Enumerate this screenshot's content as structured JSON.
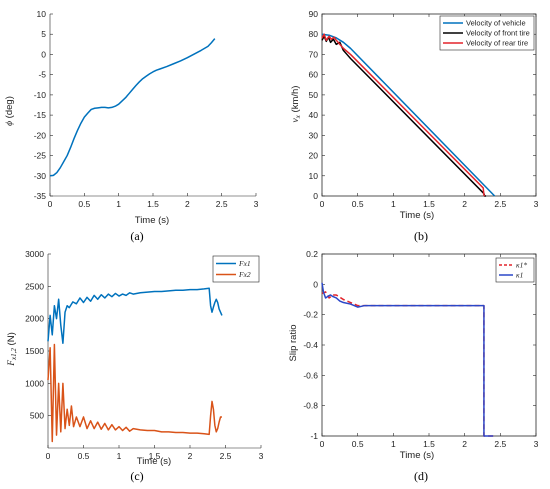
{
  "chart_data": [
    {
      "id": "a",
      "type": "line",
      "caption": "(a)",
      "xlabel": "Time (s)",
      "ylabel": "ϕ (deg)",
      "xlim": [
        0,
        3
      ],
      "ylim": [
        -35,
        10
      ],
      "xticks": [
        0,
        0.5,
        1,
        1.5,
        2,
        2.5,
        3
      ],
      "yticks": [
        -35,
        -30,
        -25,
        -20,
        -15,
        -10,
        -5,
        0,
        5,
        10
      ],
      "series": [
        {
          "color": "#0072BD",
          "x": [
            0.0,
            0.05,
            0.1,
            0.15,
            0.2,
            0.25,
            0.3,
            0.35,
            0.4,
            0.45,
            0.5,
            0.55,
            0.6,
            0.65,
            0.7,
            0.75,
            0.8,
            0.85,
            0.9,
            0.95,
            1.0,
            1.05,
            1.1,
            1.15,
            1.2,
            1.25,
            1.3,
            1.35,
            1.4,
            1.45,
            1.5,
            1.55,
            1.6,
            1.7,
            1.8,
            1.9,
            2.0,
            2.1,
            2.2,
            2.3,
            2.35,
            2.4
          ],
          "y": [
            -30,
            -29.9,
            -29.2,
            -28.0,
            -26.5,
            -25.0,
            -23.0,
            -20.8,
            -18.8,
            -17.0,
            -15.5,
            -14.5,
            -13.6,
            -13.3,
            -13.2,
            -13.1,
            -13.1,
            -13.2,
            -13.1,
            -12.8,
            -12.3,
            -11.5,
            -10.7,
            -9.7,
            -8.7,
            -7.7,
            -6.8,
            -6.0,
            -5.4,
            -4.8,
            -4.3,
            -3.9,
            -3.6,
            -3.0,
            -2.3,
            -1.6,
            -0.8,
            0.1,
            1.0,
            2.0,
            2.9,
            3.9
          ]
        }
      ]
    },
    {
      "id": "b",
      "type": "line",
      "caption": "(b)",
      "xlabel": "Time (s)",
      "ylabel": "vx (km/h)",
      "xlim": [
        0,
        3
      ],
      "ylim": [
        0,
        90
      ],
      "xticks": [
        0,
        0.5,
        1,
        1.5,
        2,
        2.5,
        3
      ],
      "yticks": [
        0,
        10,
        20,
        30,
        40,
        50,
        60,
        70,
        80,
        90
      ],
      "legend_position": "top-right",
      "series": [
        {
          "name": "Velocity of vehicle",
          "color": "#0072BD",
          "x": [
            0,
            0.1,
            0.2,
            0.3,
            0.4,
            2.42
          ],
          "y": [
            80,
            79.5,
            78.2,
            76,
            73,
            0
          ]
        },
        {
          "name": "Velocity of front tire",
          "color": "#000000",
          "x": [
            0,
            0.03,
            0.06,
            0.09,
            0.12,
            0.16,
            0.2,
            0.25,
            0.3,
            0.35,
            0.4,
            2.27,
            2.28,
            2.3
          ],
          "y": [
            77,
            79,
            76.5,
            78.5,
            76,
            77.5,
            75,
            76,
            72,
            70,
            68,
            1.2,
            0,
            0
          ]
        },
        {
          "name": "Velocity of rear tire",
          "color": "#E3242B",
          "x": [
            0,
            0.03,
            0.06,
            0.1,
            0.13,
            0.17,
            0.2,
            0.3,
            0.4,
            2.26,
            2.27,
            2.28
          ],
          "y": [
            78,
            80,
            77,
            79,
            77.5,
            78.5,
            77,
            73,
            70,
            4,
            0.5,
            0
          ]
        }
      ]
    },
    {
      "id": "c",
      "type": "line",
      "caption": "(c)",
      "xlabel": "Time (s)",
      "ylabel": "Fx1,2 (N)",
      "xlim": [
        0,
        3
      ],
      "ylim": [
        0,
        3000
      ],
      "xticks": [
        0,
        0.5,
        1,
        1.5,
        2,
        2.5,
        3
      ],
      "yticks": [
        500,
        1000,
        1500,
        2000,
        2500,
        3000
      ],
      "legend_position": "top-right",
      "series": [
        {
          "name": "Fx1",
          "color": "#0072BD",
          "x": [
            0.0,
            0.03,
            0.06,
            0.09,
            0.12,
            0.15,
            0.18,
            0.21,
            0.24,
            0.27,
            0.3,
            0.35,
            0.4,
            0.45,
            0.5,
            0.55,
            0.6,
            0.65,
            0.7,
            0.75,
            0.8,
            0.85,
            0.9,
            0.95,
            1.0,
            1.05,
            1.1,
            1.15,
            1.2,
            1.3,
            1.4,
            1.5,
            1.6,
            1.7,
            1.8,
            1.9,
            2.0,
            2.1,
            2.2,
            2.27,
            2.29,
            2.31,
            2.33,
            2.35,
            2.37,
            2.39,
            2.41,
            2.43,
            2.45
          ],
          "y": [
            1650,
            2050,
            1750,
            2200,
            2000,
            2300,
            1900,
            1620,
            2100,
            2200,
            2170,
            2260,
            2230,
            2320,
            2250,
            2330,
            2270,
            2360,
            2300,
            2370,
            2320,
            2380,
            2340,
            2390,
            2350,
            2380,
            2360,
            2400,
            2380,
            2400,
            2410,
            2420,
            2420,
            2430,
            2440,
            2440,
            2450,
            2450,
            2460,
            2470,
            2200,
            2100,
            2180,
            2250,
            2300,
            2250,
            2150,
            2100,
            2050
          ]
        },
        {
          "name": "Fx2",
          "color": "#D95319",
          "x": [
            0.0,
            0.03,
            0.06,
            0.09,
            0.12,
            0.15,
            0.18,
            0.21,
            0.24,
            0.27,
            0.3,
            0.33,
            0.36,
            0.4,
            0.45,
            0.5,
            0.55,
            0.6,
            0.65,
            0.7,
            0.75,
            0.8,
            0.85,
            0.9,
            0.95,
            1.0,
            1.05,
            1.1,
            1.15,
            1.2,
            1.3,
            1.4,
            1.5,
            1.6,
            1.7,
            1.8,
            1.9,
            2.0,
            2.1,
            2.2,
            2.27,
            2.29,
            2.31,
            2.33,
            2.35,
            2.37,
            2.39,
            2.41,
            2.43,
            2.45
          ],
          "y": [
            1050,
            1550,
            100,
            1600,
            200,
            1000,
            250,
            1000,
            300,
            600,
            350,
            650,
            330,
            480,
            330,
            480,
            300,
            420,
            300,
            400,
            290,
            380,
            280,
            360,
            280,
            330,
            270,
            320,
            260,
            300,
            280,
            270,
            270,
            250,
            250,
            240,
            240,
            230,
            230,
            220,
            210,
            500,
            720,
            600,
            350,
            250,
            300,
            400,
            480,
            480
          ]
        }
      ]
    },
    {
      "id": "d",
      "type": "line",
      "caption": "(d)",
      "xlabel": "Time (s)",
      "ylabel": "Slip ratio",
      "xlim": [
        0,
        3
      ],
      "ylim": [
        -1,
        0.2
      ],
      "xticks": [
        0,
        0.5,
        1,
        1.5,
        2,
        2.5,
        3
      ],
      "yticks": [
        -1,
        -0.8,
        -0.6,
        -0.4,
        -0.2,
        0,
        0.2
      ],
      "legend_position": "top-right",
      "series": [
        {
          "name": "κ1*",
          "color": "#E3242B",
          "dashed": true,
          "x": [
            0.0,
            0.05,
            0.1,
            0.15,
            0.2,
            0.3,
            0.4,
            0.5,
            0.6,
            0.7,
            0.8,
            0.9,
            1.0,
            1.2,
            1.4,
            1.6,
            1.8,
            2.0,
            2.2,
            2.27,
            2.27,
            2.4
          ],
          "y": [
            -0.06,
            -0.05,
            -0.09,
            -0.07,
            -0.07,
            -0.1,
            -0.12,
            -0.14,
            -0.14,
            -0.14,
            -0.14,
            -0.14,
            -0.14,
            -0.14,
            -0.14,
            -0.14,
            -0.14,
            -0.14,
            -0.14,
            -0.14,
            -1.0,
            -1.0
          ]
        },
        {
          "name": "κ1",
          "color": "#2B47C8",
          "x": [
            0.0,
            0.02,
            0.05,
            0.08,
            0.12,
            0.15,
            0.2,
            0.25,
            0.3,
            0.4,
            0.5,
            0.6,
            0.8,
            1.0,
            1.2,
            1.4,
            1.6,
            1.8,
            2.0,
            2.2,
            2.27,
            2.27,
            2.4
          ],
          "y": [
            0.01,
            -0.05,
            -0.09,
            -0.08,
            -0.07,
            -0.08,
            -0.09,
            -0.11,
            -0.12,
            -0.13,
            -0.15,
            -0.14,
            -0.14,
            -0.14,
            -0.14,
            -0.14,
            -0.14,
            -0.14,
            -0.14,
            -0.14,
            -0.14,
            -1.0,
            -1.0
          ]
        }
      ]
    }
  ]
}
